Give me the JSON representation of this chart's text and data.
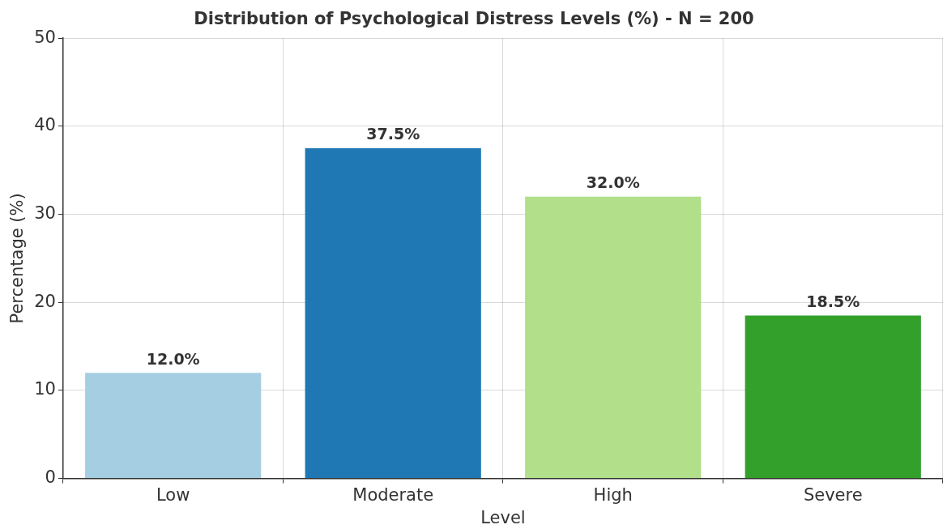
{
  "chart_data": {
    "type": "bar",
    "title": "Distribution of Psychological Distress Levels (%) - N = 200",
    "xlabel": "Level",
    "ylabel": "Percentage (%)",
    "categories": [
      "Low",
      "Moderate",
      "High",
      "Severe"
    ],
    "values": [
      12.0,
      37.5,
      32.0,
      18.5
    ],
    "colors": [
      "#a6cee3",
      "#1f78b4",
      "#b2df8a",
      "#33a02c"
    ],
    "value_labels": [
      "12.0%",
      "37.5%",
      "32.0%",
      "18.5%"
    ],
    "ylim": [
      0,
      50
    ],
    "yticks": [
      0,
      10,
      20,
      30,
      40,
      50
    ],
    "grid": true,
    "legend": false
  }
}
